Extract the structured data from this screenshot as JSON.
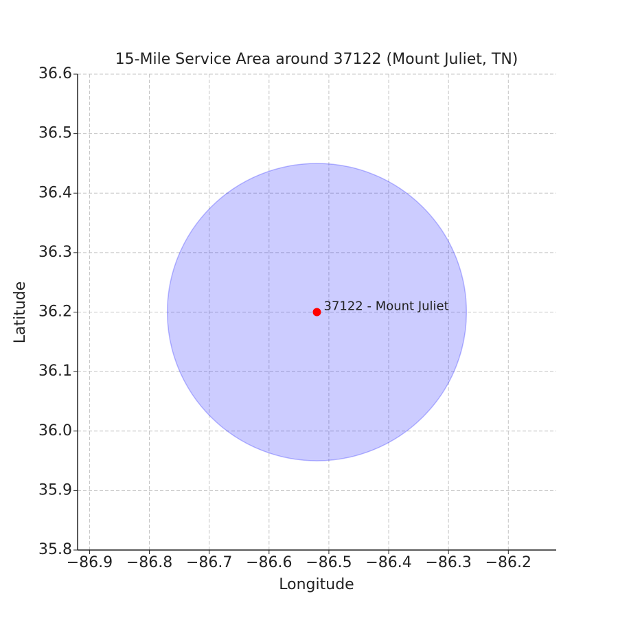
{
  "chart_data": {
    "type": "scatter",
    "title": "15-Mile Service Area around 37122 (Mount Juliet, TN)",
    "xlabel": "Longitude",
    "ylabel": "Latitude",
    "xlim": [
      -86.92,
      -86.12
    ],
    "ylim": [
      35.8,
      36.6
    ],
    "xticks": [
      {
        "value": -86.9,
        "label": "−86.9"
      },
      {
        "value": -86.8,
        "label": "−86.8"
      },
      {
        "value": -86.7,
        "label": "−86.7"
      },
      {
        "value": -86.6,
        "label": "−86.6"
      },
      {
        "value": -86.5,
        "label": "−86.5"
      },
      {
        "value": -86.4,
        "label": "−86.4"
      },
      {
        "value": -86.3,
        "label": "−86.3"
      },
      {
        "value": -86.2,
        "label": "−86.2"
      }
    ],
    "yticks": [
      35.8,
      35.9,
      {
        "value": 36.0,
        "label": "36.0"
      },
      36.1,
      36.2,
      36.3,
      36.4,
      36.5,
      36.6
    ],
    "grid": true,
    "area": {
      "center": [
        -86.52,
        36.2
      ],
      "radius": 0.25,
      "color": "#0000ff"
    },
    "series": [
      {
        "x": [
          -86.52
        ],
        "values": [
          36.2
        ],
        "color": "#ff0000"
      }
    ],
    "annotations": [
      {
        "text": "37122 - Mount Juliet",
        "x": -86.52,
        "y": 36.2
      }
    ]
  }
}
